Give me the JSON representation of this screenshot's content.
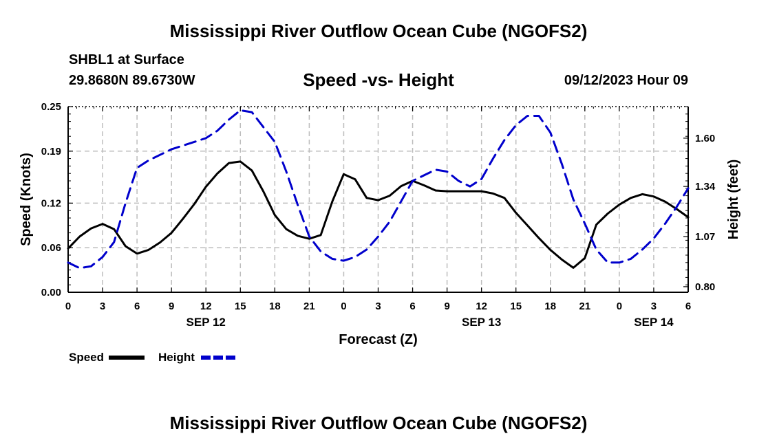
{
  "header": {
    "title": "Mississippi River Outflow Ocean Cube (NGOFS2)",
    "station": "SHBL1 at Surface",
    "coords": "29.8680N  89.6730W",
    "subtitle": "Speed -vs- Height",
    "datetime": "09/12/2023 Hour 09"
  },
  "footer": {
    "title": "Mississippi River Outflow Ocean Cube (NGOFS2)"
  },
  "chart_data": {
    "type": "line",
    "title": "Speed -vs- Height",
    "xlabel": "Forecast (Z)",
    "ylabel": "Speed (Knots)",
    "y2label": "Height (feet)",
    "x_range": [
      0,
      54
    ],
    "x_tick_labels": [
      "0",
      "3",
      "6",
      "9",
      "12",
      "15",
      "18",
      "21",
      "0",
      "3",
      "6",
      "9",
      "12",
      "15",
      "18",
      "21",
      "0",
      "3",
      "6"
    ],
    "date_labels": [
      {
        "label": "SEP 12",
        "x": 12
      },
      {
        "label": "SEP 13",
        "x": 36
      },
      {
        "label": "SEP 14",
        "x": 51
      }
    ],
    "y_range": [
      0,
      0.25
    ],
    "y_ticks": [
      0.0,
      0.06,
      0.12,
      0.19,
      0.25
    ],
    "y_tick_labels": [
      "0.00",
      "0.06",
      "0.12",
      "0.19",
      "0.25"
    ],
    "y2_range": [
      0.77,
      1.77
    ],
    "y2_ticks": [
      0.8,
      1.07,
      1.34,
      1.6
    ],
    "y2_tick_labels": [
      "0.80",
      "1.07",
      "1.34",
      "1.60"
    ],
    "grid": true,
    "series": [
      {
        "name": "Speed",
        "axis": "left",
        "color": "#000000",
        "dash": "solid",
        "x": [
          0,
          1,
          2,
          3,
          4,
          5,
          6,
          7,
          8,
          9,
          10,
          11,
          12,
          13,
          14,
          15,
          16,
          17,
          18,
          19,
          20,
          21,
          22,
          23,
          24,
          25,
          26,
          27,
          28,
          29,
          30,
          31,
          32,
          33,
          34,
          35,
          36,
          37,
          38,
          39,
          40,
          41,
          42,
          43,
          44,
          45,
          46,
          47,
          48,
          49,
          50,
          51,
          52,
          53,
          54
        ],
        "values": [
          0.059,
          0.075,
          0.086,
          0.092,
          0.085,
          0.062,
          0.052,
          0.057,
          0.067,
          0.08,
          0.099,
          0.119,
          0.142,
          0.16,
          0.174,
          0.176,
          0.164,
          0.136,
          0.104,
          0.085,
          0.076,
          0.072,
          0.077,
          0.122,
          0.159,
          0.152,
          0.127,
          0.124,
          0.13,
          0.143,
          0.15,
          0.144,
          0.137,
          0.136,
          0.136,
          0.136,
          0.136,
          0.133,
          0.127,
          0.107,
          0.09,
          0.073,
          0.057,
          0.044,
          0.033,
          0.046,
          0.091,
          0.106,
          0.118,
          0.127,
          0.132,
          0.129,
          0.122,
          0.112,
          0.101
        ]
      },
      {
        "name": "Height",
        "axis": "right",
        "color": "#0000cc",
        "dash": "dashed",
        "x": [
          0,
          1,
          2,
          3,
          4,
          5,
          6,
          7,
          8,
          9,
          10,
          11,
          12,
          13,
          14,
          15,
          16,
          17,
          18,
          19,
          20,
          21,
          22,
          23,
          24,
          25,
          26,
          27,
          28,
          29,
          30,
          31,
          32,
          33,
          34,
          35,
          36,
          37,
          38,
          39,
          40,
          41,
          42,
          43,
          44,
          45,
          46,
          47,
          48,
          49,
          50,
          51,
          52,
          53,
          54
        ],
        "values": [
          0.93,
          0.9,
          0.91,
          0.96,
          1.04,
          1.25,
          1.44,
          1.48,
          1.51,
          1.54,
          1.56,
          1.58,
          1.6,
          1.64,
          1.7,
          1.75,
          1.74,
          1.66,
          1.58,
          1.42,
          1.24,
          1.07,
          0.99,
          0.95,
          0.94,
          0.96,
          1.0,
          1.07,
          1.15,
          1.26,
          1.37,
          1.4,
          1.43,
          1.42,
          1.37,
          1.34,
          1.38,
          1.49,
          1.59,
          1.67,
          1.72,
          1.72,
          1.63,
          1.46,
          1.27,
          1.14,
          1.0,
          0.93,
          0.93,
          0.95,
          1.0,
          1.06,
          1.14,
          1.23,
          1.33
        ]
      }
    ],
    "legend": {
      "placement": "bottom-left",
      "items": [
        {
          "label": "Speed",
          "color": "#000000",
          "dash": "solid"
        },
        {
          "label": "Height",
          "color": "#0000cc",
          "dash": "dashed"
        }
      ]
    }
  }
}
